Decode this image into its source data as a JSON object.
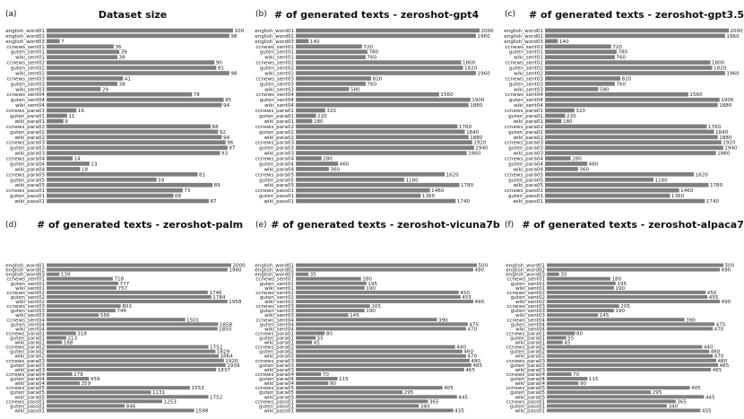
{
  "categories": [
    "english_word01",
    "english_word02",
    "english_word03",
    "ccnews_sent01",
    "guten_sent01",
    "wiki_sent01",
    "ccnews_sent02",
    "guten_sent02",
    "wiki_sent02",
    "ccnews_sent03",
    "guten_sent03",
    "wiki_sent03",
    "ccnews_sent04",
    "guten_sent04",
    "wiki_sent04",
    "ccnews_para01",
    "guten_para01",
    "wiki_para01",
    "ccnews_para02",
    "guten_para02",
    "wiki_para02",
    "ccnews_para03",
    "guten_para03",
    "wiki_para03",
    "ccnews_para04",
    "guten_para04",
    "wiki_para04",
    "ccnews_para05",
    "guten_para05",
    "wiki_para05",
    "ccnews_pass01",
    "guten_pass01",
    "wiki_pass01"
  ],
  "chart_data": [
    {
      "type": "bar",
      "orientation": "horizontal",
      "panel": "(a)",
      "title": "Dataset size",
      "xlim": [
        0,
        100
      ],
      "values": [
        100,
        98,
        7,
        36,
        39,
        38,
        90,
        91,
        98,
        41,
        38,
        29,
        78,
        95,
        94,
        16,
        11,
        9,
        88,
        92,
        94,
        96,
        97,
        93,
        14,
        23,
        18,
        81,
        59,
        89,
        73,
        68,
        87
      ]
    },
    {
      "type": "bar",
      "orientation": "horizontal",
      "panel": "(b)",
      "title": "# of generated texts - zeroshot-gpt4",
      "xlim": [
        0,
        2000
      ],
      "values": [
        2000,
        1960,
        140,
        720,
        780,
        760,
        1800,
        1820,
        1960,
        820,
        760,
        580,
        1560,
        1900,
        1880,
        320,
        220,
        180,
        1760,
        1840,
        1880,
        1920,
        1940,
        1860,
        280,
        460,
        360,
        1620,
        1180,
        1780,
        1460,
        1360,
        1740
      ]
    },
    {
      "type": "bar",
      "orientation": "horizontal",
      "panel": "(c)",
      "title": "# of generated texts - zeroshot-gpt3.5",
      "xlim": [
        0,
        2000
      ],
      "values": [
        2000,
        1960,
        140,
        720,
        780,
        760,
        1800,
        1820,
        1960,
        820,
        760,
        580,
        1560,
        1900,
        1880,
        320,
        220,
        180,
        1760,
        1840,
        1880,
        1920,
        1940,
        1860,
        280,
        460,
        360,
        1620,
        1180,
        1780,
        1460,
        1360,
        1740
      ]
    },
    {
      "type": "bar",
      "orientation": "horizontal",
      "panel": "(d)",
      "title": "# of generated texts - zeroshot-palm",
      "xlim": [
        0,
        2000
      ],
      "values": [
        2000,
        1960,
        139,
        718,
        777,
        757,
        1746,
        1784,
        1958,
        803,
        746,
        566,
        1501,
        1858,
        1850,
        318,
        213,
        168,
        1752,
        1829,
        1864,
        1920,
        1939,
        1837,
        278,
        459,
        359,
        1553,
        1131,
        1752,
        1253,
        846,
        1598
      ]
    },
    {
      "type": "bar",
      "orientation": "horizontal",
      "panel": "(e)",
      "title": "# of generated texts - zeroshot-vicuna7b",
      "xlim": [
        0,
        500
      ],
      "values": [
        500,
        490,
        35,
        180,
        195,
        190,
        450,
        455,
        490,
        205,
        190,
        145,
        390,
        475,
        470,
        80,
        55,
        45,
        440,
        460,
        470,
        480,
        485,
        465,
        70,
        115,
        90,
        405,
        295,
        445,
        365,
        340,
        435
      ]
    },
    {
      "type": "bar",
      "orientation": "horizontal",
      "panel": "(f)",
      "title": "# of generated texts - zeroshot-alpaca7b",
      "xlim": [
        0,
        500
      ],
      "values": [
        500,
        490,
        35,
        180,
        195,
        190,
        450,
        455,
        490,
        205,
        190,
        145,
        390,
        475,
        470,
        80,
        55,
        45,
        440,
        460,
        470,
        480,
        485,
        465,
        70,
        115,
        90,
        405,
        295,
        445,
        365,
        340,
        435
      ]
    }
  ]
}
